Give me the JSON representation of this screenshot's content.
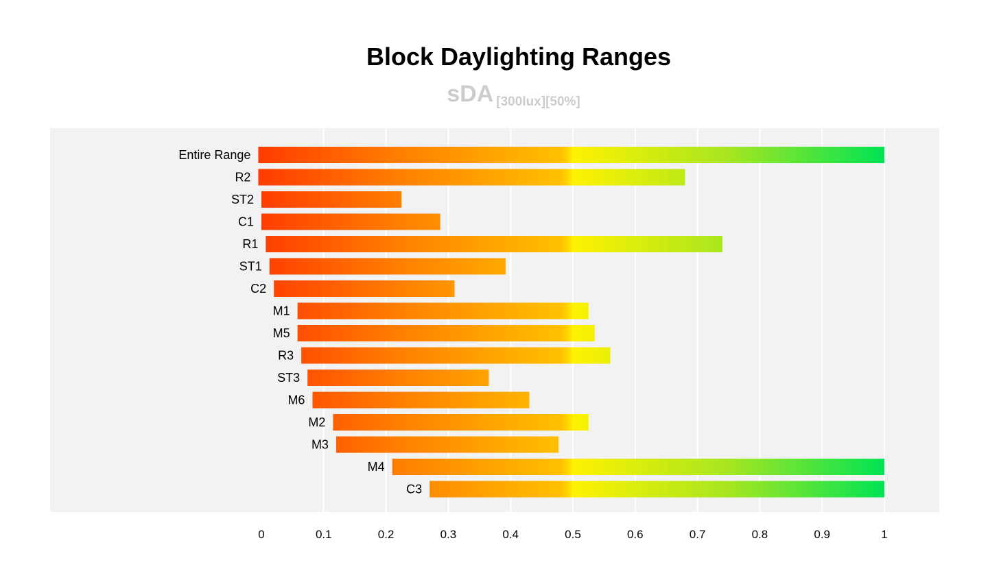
{
  "chart_data": {
    "type": "bar",
    "orientation": "horizontal",
    "title": "Block Daylighting Ranges",
    "subtitle": "sDA",
    "subtitle_qualifier": "[300lux][50%]",
    "xlabel": "",
    "ylabel": "",
    "xlim": [
      0,
      1
    ],
    "x_ticks": [
      "0",
      "0.1",
      "0.2",
      "0.3",
      "0.4",
      "0.5",
      "0.6",
      "0.7",
      "0.8",
      "0.9",
      "1"
    ],
    "grid": true,
    "colors": {
      "low": "#ff3d00",
      "mid": "#ff9a00",
      "high_mid": "#fff200",
      "high": "#00e354",
      "panel": "#f2f2f2"
    },
    "bars": [
      {
        "category": "Entire Range",
        "start": -0.005,
        "end": 1.0
      },
      {
        "category": "R2",
        "start": -0.005,
        "end": 0.68
      },
      {
        "category": "ST2",
        "start": 0.0,
        "end": 0.225
      },
      {
        "category": "C1",
        "start": 0.0,
        "end": 0.287
      },
      {
        "category": "R1",
        "start": 0.007,
        "end": 0.74
      },
      {
        "category": "ST1",
        "start": 0.013,
        "end": 0.392
      },
      {
        "category": "C2",
        "start": 0.02,
        "end": 0.31
      },
      {
        "category": "M1",
        "start": 0.058,
        "end": 0.525
      },
      {
        "category": "M5",
        "start": 0.058,
        "end": 0.535
      },
      {
        "category": "R3",
        "start": 0.064,
        "end": 0.56
      },
      {
        "category": "ST3",
        "start": 0.074,
        "end": 0.365
      },
      {
        "category": "M6",
        "start": 0.082,
        "end": 0.43
      },
      {
        "category": "M2",
        "start": 0.115,
        "end": 0.525
      },
      {
        "category": "M3",
        "start": 0.12,
        "end": 0.477
      },
      {
        "category": "M4",
        "start": 0.21,
        "end": 1.0
      },
      {
        "category": "C3",
        "start": 0.27,
        "end": 1.0
      }
    ]
  }
}
